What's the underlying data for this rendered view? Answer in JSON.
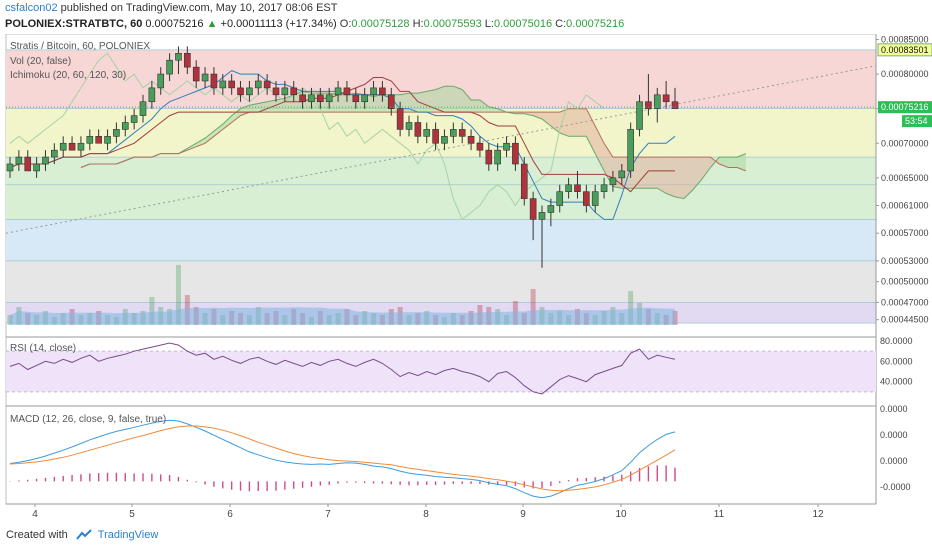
{
  "header": {
    "author": "csfalcon02",
    "published_text": "published on TradingView.com, May 10, 2017 08:06 EST",
    "symbol": "POLONIEX:STRATBTC, 60",
    "last": "0.00075216",
    "change_arrow": "▲",
    "change": "+0.00011113 (+17.34%)",
    "o_label": "O:",
    "o_value": "0.00075128",
    "h_label": "H:",
    "h_value": "0.00075593",
    "l_label": "L:",
    "l_value": "0.00075016",
    "c_label": "C:",
    "c_value": "0.00075216"
  },
  "footer": {
    "created_with": "Created with",
    "brand": "TradingView",
    "logo_icon": "tradingview-logo-icon"
  },
  "colors": {
    "bull": "#4a9e5c",
    "bear": "#b0323c",
    "volume": "#7fb6e0",
    "fib_red": "#f7d6d6",
    "fib_yellow": "#f1f5c9",
    "fib_green": "#d9efd3",
    "fib_blue": "#d7e8f6",
    "fib_gray": "#e6e6e6",
    "fib_purple": "#e2d9f3",
    "rsi_band": "#efe3fa",
    "rsi_line": "#7a4a8c",
    "macd_line": "#3d9be0",
    "signal_line": "#f08a3a",
    "histogram": "#d04a8a",
    "price_tag_green": "#2dbf57",
    "tenkan": "#2f7fc0",
    "kijun": "#a03e3e",
    "lagging": "#a5d3a5",
    "cloud_green": "#a9d8a0",
    "cloud_red": "#e1b1a1"
  },
  "chart_data": {
    "type": "candlestick",
    "main_pane": {
      "title": "Stratis / Bitcoin, 60, POLONIEX",
      "indicators": [
        "Vol (20, false)",
        "Ichimoku (20, 60, 120, 30)"
      ],
      "ylim": [
        0.00042,
        0.000855
      ],
      "y_ticks": [
        "0.00085000",
        "0.00080000",
        "0.00075000",
        "0.00070000",
        "0.00065000",
        "0.00061000",
        "0.00057000",
        "0.00053000",
        "0.00050000",
        "0.00047000",
        "0.00044500"
      ],
      "price_tags": [
        {
          "label": "0.00083501",
          "value": 0.00083501,
          "style": "level"
        },
        {
          "label": "0.00075216",
          "value": 0.00075216,
          "style": "last"
        },
        {
          "label": "53:54",
          "value": 0.000732,
          "style": "timer"
        }
      ],
      "fib_levels": [
        0.000835,
        0.00075,
        0.00068,
        0.00064,
        0.00059,
        0.00053,
        0.00047,
        0.00044
      ],
      "candles": [
        [
          0.00066,
          0.00068,
          0.00065,
          0.00067
        ],
        [
          0.00067,
          0.00069,
          0.00066,
          0.00068
        ],
        [
          0.00068,
          0.00069,
          0.00066,
          0.00066
        ],
        [
          0.00066,
          0.00068,
          0.00065,
          0.00067
        ],
        [
          0.00067,
          0.00069,
          0.00066,
          0.00068
        ],
        [
          0.00068,
          0.0007,
          0.00067,
          0.00069
        ],
        [
          0.00069,
          0.00071,
          0.00068,
          0.0007
        ],
        [
          0.0007,
          0.00071,
          0.00069,
          0.00069
        ],
        [
          0.00069,
          0.00071,
          0.00068,
          0.0007
        ],
        [
          0.0007,
          0.00072,
          0.00069,
          0.00071
        ],
        [
          0.00071,
          0.00072,
          0.0007,
          0.0007
        ],
        [
          0.0007,
          0.00072,
          0.00069,
          0.00071
        ],
        [
          0.00071,
          0.00073,
          0.0007,
          0.00072
        ],
        [
          0.00072,
          0.00074,
          0.00071,
          0.00073
        ],
        [
          0.00073,
          0.00075,
          0.00072,
          0.00074
        ],
        [
          0.00074,
          0.00077,
          0.00073,
          0.00076
        ],
        [
          0.00076,
          0.00079,
          0.00075,
          0.00078
        ],
        [
          0.00078,
          0.00081,
          0.00077,
          0.0008
        ],
        [
          0.0008,
          0.00083,
          0.00079,
          0.00082
        ],
        [
          0.00082,
          0.00084,
          0.0008,
          0.00083
        ],
        [
          0.00083,
          0.00084,
          0.0008,
          0.00081
        ],
        [
          0.00081,
          0.00082,
          0.00078,
          0.00079
        ],
        [
          0.00079,
          0.00081,
          0.00078,
          0.0008
        ],
        [
          0.0008,
          0.00081,
          0.00077,
          0.00078
        ],
        [
          0.00078,
          0.0008,
          0.00077,
          0.00079
        ],
        [
          0.00079,
          0.0008,
          0.00077,
          0.00078
        ],
        [
          0.00078,
          0.00079,
          0.00076,
          0.00077
        ],
        [
          0.00077,
          0.00079,
          0.00076,
          0.00078
        ],
        [
          0.00078,
          0.0008,
          0.00077,
          0.00079
        ],
        [
          0.00079,
          0.0008,
          0.00077,
          0.00078
        ],
        [
          0.00078,
          0.00079,
          0.00076,
          0.00077
        ],
        [
          0.00077,
          0.00079,
          0.00076,
          0.00078
        ],
        [
          0.00078,
          0.00079,
          0.00076,
          0.00077
        ],
        [
          0.00077,
          0.00078,
          0.00075,
          0.00076
        ],
        [
          0.00076,
          0.00078,
          0.00075,
          0.00077
        ],
        [
          0.00077,
          0.00078,
          0.00075,
          0.00076
        ],
        [
          0.00076,
          0.00078,
          0.00075,
          0.00077
        ],
        [
          0.00077,
          0.00079,
          0.00076,
          0.00078
        ],
        [
          0.00078,
          0.00079,
          0.00076,
          0.00077
        ],
        [
          0.00077,
          0.00078,
          0.00075,
          0.00076
        ],
        [
          0.00076,
          0.00078,
          0.00075,
          0.00077
        ],
        [
          0.00077,
          0.00079,
          0.00076,
          0.00078
        ],
        [
          0.00078,
          0.00079,
          0.00076,
          0.00077
        ],
        [
          0.00077,
          0.00078,
          0.00074,
          0.00075
        ],
        [
          0.00075,
          0.00076,
          0.00071,
          0.00072
        ],
        [
          0.00072,
          0.00074,
          0.00071,
          0.00073
        ],
        [
          0.00073,
          0.00074,
          0.0007,
          0.00071
        ],
        [
          0.00071,
          0.00073,
          0.0007,
          0.00072
        ],
        [
          0.00072,
          0.00073,
          0.00069,
          0.0007
        ],
        [
          0.0007,
          0.00072,
          0.00069,
          0.00071
        ],
        [
          0.00071,
          0.00073,
          0.0007,
          0.00072
        ],
        [
          0.00072,
          0.00073,
          0.0007,
          0.00071
        ],
        [
          0.00071,
          0.00072,
          0.00069,
          0.0007
        ],
        [
          0.0007,
          0.00071,
          0.00068,
          0.00069
        ],
        [
          0.00069,
          0.0007,
          0.00066,
          0.00067
        ],
        [
          0.00067,
          0.0007,
          0.00066,
          0.00069
        ],
        [
          0.00069,
          0.00071,
          0.00068,
          0.0007
        ],
        [
          0.0007,
          0.00071,
          0.00066,
          0.00067
        ],
        [
          0.00067,
          0.00068,
          0.00061,
          0.00062
        ],
        [
          0.00062,
          0.00063,
          0.00056,
          0.00059
        ],
        [
          0.00059,
          0.00061,
          0.00052,
          0.0006
        ],
        [
          0.0006,
          0.00062,
          0.00058,
          0.00061
        ],
        [
          0.00061,
          0.00064,
          0.0006,
          0.00063
        ],
        [
          0.00063,
          0.00065,
          0.00062,
          0.00064
        ],
        [
          0.00064,
          0.00066,
          0.00062,
          0.00063
        ],
        [
          0.00063,
          0.00064,
          0.0006,
          0.00061
        ],
        [
          0.00061,
          0.00064,
          0.0006,
          0.00063
        ],
        [
          0.00063,
          0.00065,
          0.00062,
          0.00064
        ],
        [
          0.00064,
          0.00066,
          0.00063,
          0.00065
        ],
        [
          0.00065,
          0.00067,
          0.00064,
          0.00066
        ],
        [
          0.00066,
          0.00073,
          0.00065,
          0.00072
        ],
        [
          0.00072,
          0.00077,
          0.00071,
          0.00076
        ],
        [
          0.00076,
          0.0008,
          0.00074,
          0.00075
        ],
        [
          0.00075,
          0.00078,
          0.00073,
          0.00077
        ],
        [
          0.00077,
          0.00079,
          0.00075,
          0.00076
        ],
        [
          0.00076,
          0.00078,
          0.00075,
          0.00075
        ]
      ],
      "volume": [
        5,
        9,
        6,
        5,
        7,
        4,
        6,
        8,
        5,
        6,
        7,
        5,
        4,
        8,
        6,
        7,
        14,
        9,
        8,
        30,
        15,
        9,
        6,
        8,
        5,
        7,
        6,
        5,
        9,
        6,
        7,
        5,
        8,
        6,
        4,
        7,
        5,
        6,
        8,
        5,
        7,
        6,
        5,
        8,
        9,
        5,
        6,
        7,
        5,
        4,
        6,
        5,
        7,
        10,
        9,
        8,
        5,
        12,
        6,
        18,
        9,
        6,
        7,
        5,
        8,
        6,
        5,
        7,
        9,
        6,
        17,
        11,
        8,
        6,
        5,
        7
      ]
    },
    "rsi_pane": {
      "label": "RSI (14, close)",
      "ylim": [
        20,
        80
      ],
      "y_ticks": [
        "80.0000",
        "60.0000",
        "40.0000"
      ],
      "band": [
        30,
        70
      ],
      "values": [
        55,
        58,
        52,
        56,
        60,
        58,
        62,
        59,
        63,
        66,
        60,
        63,
        65,
        67,
        70,
        72,
        74,
        76,
        78,
        76,
        70,
        66,
        68,
        62,
        65,
        61,
        58,
        62,
        64,
        60,
        57,
        61,
        58,
        55,
        59,
        56,
        60,
        62,
        58,
        55,
        59,
        62,
        58,
        52,
        45,
        49,
        46,
        50,
        47,
        51,
        53,
        50,
        48,
        45,
        40,
        48,
        50,
        44,
        36,
        30,
        28,
        35,
        42,
        46,
        43,
        40,
        47,
        50,
        53,
        56,
        68,
        72,
        62,
        66,
        64,
        62
      ]
    },
    "macd_pane": {
      "label": "MACD (12, 26, close, 9, false, true)",
      "ylim": [
        -9.5e-06,
        1.4e-05
      ],
      "y_ticks": [
        "0.0000",
        "0.0000",
        "0.0000",
        "-0.0000"
      ],
      "macd": [
        0.2,
        0.5,
        0.9,
        1.4,
        2.0,
        2.7,
        3.4,
        4.2,
        5.0,
        5.9,
        6.6,
        7.3,
        7.9,
        8.4,
        8.9,
        9.4,
        9.9,
        10.3,
        10.6,
        10.4,
        9.7,
        8.9,
        8.0,
        7.0,
        6.0,
        5.0,
        4.0,
        3.0,
        2.3,
        1.6,
        1.0,
        0.6,
        0.3,
        0.1,
        0.0,
        0.1,
        0.0,
        0.2,
        0.4,
        0.3,
        0.0,
        -0.4,
        -0.6,
        -1.0,
        -1.6,
        -2.1,
        -2.4,
        -2.6,
        -2.9,
        -3.1,
        -3.2,
        -3.4,
        -3.6,
        -3.9,
        -4.4,
        -4.8,
        -5.1,
        -5.8,
        -6.8,
        -7.6,
        -8.0,
        -7.6,
        -6.8,
        -5.8,
        -5.0,
        -4.6,
        -4.1,
        -3.4,
        -2.5,
        -1.5,
        0.5,
        2.8,
        4.5,
        6.0,
        7.2,
        7.8
      ],
      "signal": [
        0.1,
        0.2,
        0.4,
        0.6,
        0.9,
        1.3,
        1.7,
        2.2,
        2.8,
        3.4,
        4.0,
        4.6,
        5.2,
        5.8,
        6.4,
        6.9,
        7.5,
        8.1,
        8.6,
        9.0,
        9.2,
        9.2,
        9.0,
        8.7,
        8.2,
        7.6,
        6.9,
        6.1,
        5.3,
        4.6,
        3.9,
        3.2,
        2.6,
        2.1,
        1.7,
        1.4,
        1.1,
        0.9,
        0.8,
        0.7,
        0.5,
        0.3,
        0.1,
        -0.1,
        -0.5,
        -0.9,
        -1.2,
        -1.5,
        -1.8,
        -2.1,
        -2.4,
        -2.6,
        -2.8,
        -3.1,
        -3.4,
        -3.7,
        -4.0,
        -4.4,
        -4.9,
        -5.4,
        -5.9,
        -6.2,
        -6.3,
        -6.2,
        -6.0,
        -5.7,
        -5.4,
        -4.9,
        -4.3,
        -3.6,
        -2.6,
        -1.4,
        -0.2,
        1.0,
        2.2,
        3.5
      ]
    },
    "x_axis": {
      "ticks": [
        "4",
        "5",
        "6",
        "7",
        "8",
        "9",
        "10",
        "11",
        "12"
      ]
    }
  }
}
